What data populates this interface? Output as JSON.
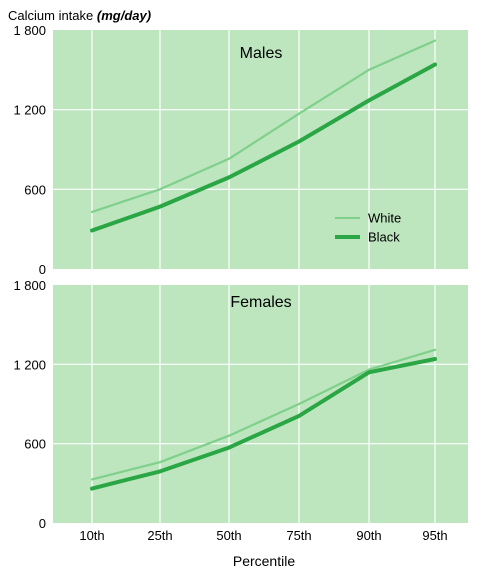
{
  "chart_data": {
    "type": "line",
    "ylabel": "Calcium intake",
    "ylabel_unit": "(mg/day)",
    "xlabel": "Percentile",
    "categories": [
      "10th",
      "25th",
      "50th",
      "75th",
      "90th",
      "95th"
    ],
    "ylim": [
      0,
      1800
    ],
    "yticks": [
      "0",
      "600",
      "1 200",
      "1 800"
    ],
    "ytick_values": [
      0,
      600,
      1200,
      1800
    ],
    "grid": true,
    "legend": {
      "placement": "right",
      "entries": [
        "White",
        "Black"
      ]
    },
    "colors": {
      "background": "#bde6bf",
      "grid": "#ffffff",
      "White": "#7fd08a",
      "Black": "#2aa644"
    },
    "panels": [
      {
        "title": "Males",
        "series": [
          {
            "name": "White",
            "values": [
              430,
              600,
              830,
              1170,
              1500,
              1720
            ]
          },
          {
            "name": "Black",
            "values": [
              290,
              470,
              690,
              960,
              1270,
              1540
            ]
          }
        ]
      },
      {
        "title": "Females",
        "series": [
          {
            "name": "White",
            "values": [
              330,
              460,
              660,
              900,
              1160,
              1310
            ]
          },
          {
            "name": "Black",
            "values": [
              260,
              390,
              570,
              810,
              1140,
              1240
            ]
          }
        ]
      }
    ]
  }
}
